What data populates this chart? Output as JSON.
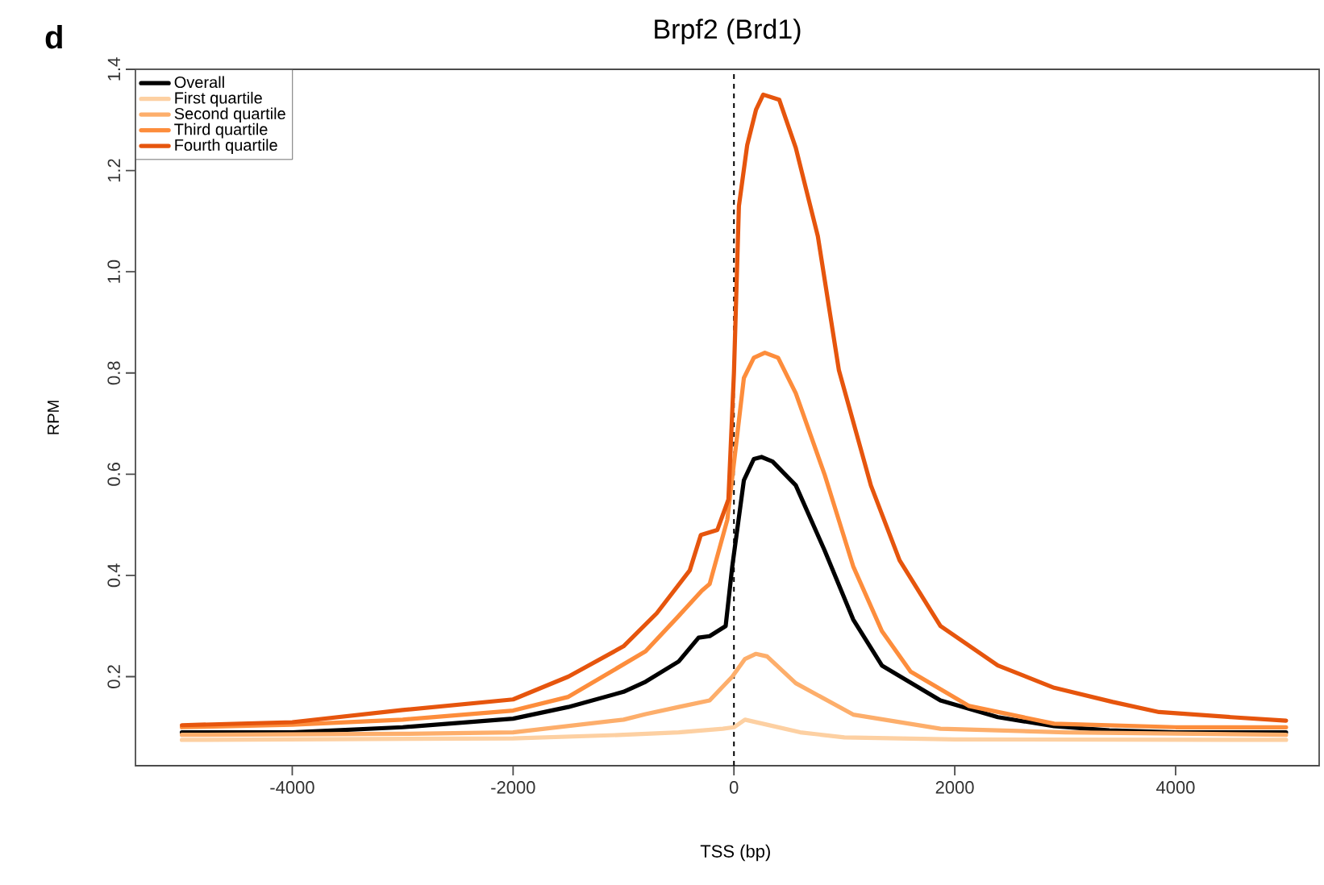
{
  "chart_data": {
    "type": "line",
    "title": "Brpf2 (Brd1)",
    "xlabel": "TSS (bp)",
    "ylabel": "RPM",
    "annotations": [
      "d"
    ],
    "xlim": [
      -5420,
      5300
    ],
    "ylim": [
      0.024,
      1.4
    ],
    "xticks": [
      -4000,
      -2000,
      0,
      2000,
      4000
    ],
    "yticks": [
      0.2,
      0.4,
      0.6,
      0.8,
      {
        "value": 1.0,
        "label": "1.0"
      },
      1.2,
      1.4
    ],
    "legend": "top left",
    "line_style": "solid",
    "ref_lines": [
      {
        "axis": "x",
        "value": 0,
        "line_style": "dashed",
        "color": "#000000"
      }
    ],
    "series": [
      {
        "name": "Overall",
        "color": "#000000",
        "x": [
          -5000,
          -4000,
          -3000,
          -2000,
          -1500,
          -1000,
          -800,
          -500,
          -320,
          -220,
          -75,
          -15,
          90,
          180,
          250,
          350,
          560,
          820,
          1080,
          1340,
          1870,
          2390,
          2900,
          3400,
          4000,
          5000
        ],
        "values": [
          0.09,
          0.09,
          0.1,
          0.117,
          0.14,
          0.17,
          0.19,
          0.23,
          0.277,
          0.28,
          0.3,
          0.418,
          0.588,
          0.63,
          0.634,
          0.625,
          0.578,
          0.45,
          0.313,
          0.222,
          0.153,
          0.12,
          0.102,
          0.094,
          0.09,
          0.09
        ]
      },
      {
        "name": "First quartile",
        "color": "#fdd0a2",
        "x": [
          -5000,
          -2000,
          -1000,
          -500,
          -100,
          0,
          100,
          300,
          600,
          1000,
          2000,
          5000
        ],
        "values": [
          0.075,
          0.078,
          0.085,
          0.09,
          0.097,
          0.1,
          0.115,
          0.105,
          0.09,
          0.08,
          0.076,
          0.075
        ]
      },
      {
        "name": "Second quartile",
        "color": "#fdae6b",
        "x": [
          -5000,
          -3000,
          -2000,
          -1000,
          -800,
          -500,
          -220,
          -15,
          100,
          200,
          300,
          560,
          1080,
          1870,
          3000,
          5000
        ],
        "values": [
          0.085,
          0.087,
          0.09,
          0.115,
          0.126,
          0.14,
          0.153,
          0.2,
          0.235,
          0.245,
          0.24,
          0.187,
          0.125,
          0.097,
          0.09,
          0.085
        ]
      },
      {
        "name": "Third quartile",
        "color": "#fd8d3c",
        "x": [
          -5000,
          -4000,
          -3000,
          -2000,
          -1500,
          -800,
          -500,
          -290,
          -220,
          -60,
          90,
          180,
          280,
          400,
          560,
          820,
          1080,
          1340,
          1600,
          2130,
          2900,
          4000,
          5000
        ],
        "values": [
          0.1,
          0.105,
          0.115,
          0.133,
          0.16,
          0.25,
          0.32,
          0.37,
          0.383,
          0.51,
          0.79,
          0.83,
          0.84,
          0.83,
          0.76,
          0.6,
          0.418,
          0.29,
          0.21,
          0.142,
          0.107,
          0.1,
          0.1
        ]
      },
      {
        "name": "Fourth quartile",
        "color": "#e6550d",
        "x": [
          -5000,
          -4000,
          -3000,
          -2000,
          -1500,
          -1000,
          -700,
          -400,
          -300,
          -150,
          -50,
          0,
          45,
          120,
          200,
          265,
          410,
          560,
          760,
          950,
          1240,
          1500,
          1870,
          2390,
          2900,
          3430,
          3850,
          4500,
          5000
        ],
        "values": [
          0.104,
          0.11,
          0.134,
          0.155,
          0.2,
          0.26,
          0.325,
          0.41,
          0.48,
          0.49,
          0.55,
          0.8,
          1.13,
          1.25,
          1.32,
          1.35,
          1.34,
          1.245,
          1.07,
          0.806,
          0.578,
          0.43,
          0.3,
          0.222,
          0.178,
          0.15,
          0.13,
          0.12,
          0.113
        ]
      }
    ]
  }
}
